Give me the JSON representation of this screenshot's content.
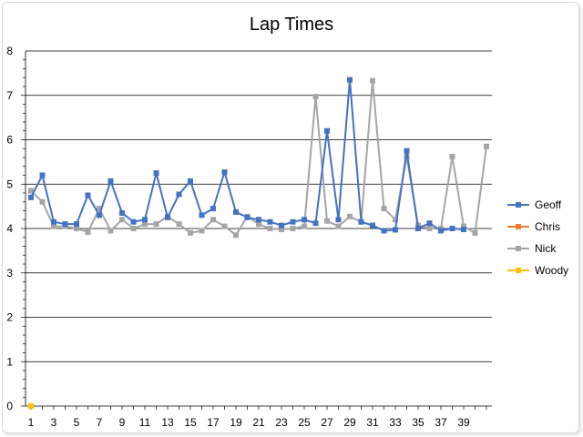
{
  "chart_data": {
    "type": "line",
    "title": "Lap Times",
    "xlabel": "",
    "ylabel": "",
    "ylim": [
      0,
      8
    ],
    "yticks": [
      0,
      1,
      2,
      3,
      4,
      5,
      6,
      7,
      8
    ],
    "xticks": [
      1,
      3,
      5,
      7,
      9,
      11,
      13,
      15,
      17,
      19,
      21,
      23,
      25,
      27,
      29,
      31,
      33,
      35,
      37,
      39
    ],
    "x_max": 41,
    "grid": true,
    "legend": "right",
    "series": [
      {
        "name": "Geoff",
        "color": "#4472C4",
        "marker": "square",
        "values": [
          4.7,
          5.2,
          4.15,
          4.1,
          4.1,
          4.75,
          4.3,
          5.07,
          4.35,
          4.15,
          4.2,
          5.25,
          4.25,
          4.77,
          5.07,
          4.3,
          4.45,
          5.27,
          4.37,
          4.25,
          4.2,
          4.15,
          4.07,
          4.15,
          4.2,
          4.12,
          6.2,
          4.2,
          7.35,
          4.15,
          4.07,
          3.95,
          3.97,
          5.75,
          4.0,
          4.12,
          3.95,
          4.0,
          3.98
        ]
      },
      {
        "name": "Chris",
        "color": "#ED7D31",
        "marker": "square",
        "values": []
      },
      {
        "name": "Nick",
        "color": "#A5A5A5",
        "marker": "square",
        "values": [
          4.85,
          4.6,
          4.05,
          4.05,
          4.0,
          3.92,
          4.45,
          3.95,
          4.2,
          4.0,
          4.1,
          4.1,
          4.27,
          4.1,
          3.9,
          3.95,
          4.2,
          4.05,
          3.85,
          4.27,
          4.1,
          4.0,
          3.98,
          4.0,
          4.05,
          6.97,
          4.17,
          4.05,
          4.27,
          4.15,
          7.33,
          4.45,
          4.2,
          5.62,
          4.07,
          4.0,
          4.0,
          5.62,
          4.05,
          3.9,
          5.85
        ]
      },
      {
        "name": "Woody",
        "color": "#FFC000",
        "marker": "square",
        "values": [
          0
        ]
      }
    ]
  }
}
